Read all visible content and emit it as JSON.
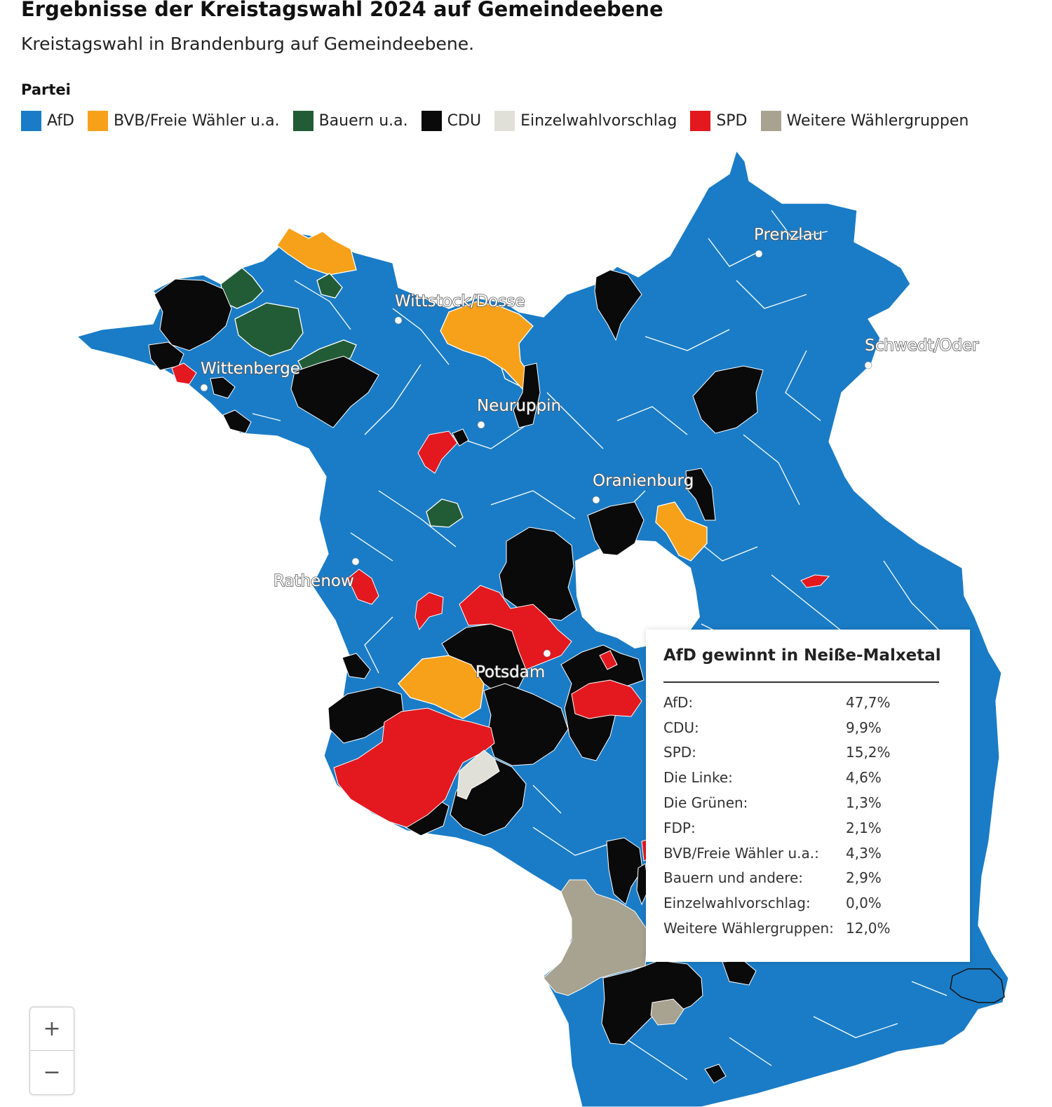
{
  "header": {
    "title": "Ergebnisse der Kreistagswahl 2024 auf Gemeindeebene",
    "subtitle": "Kreistagswahl in Brandenburg auf Gemeindeebene."
  },
  "legend": {
    "title": "Partei",
    "items": [
      {
        "label": "AfD",
        "color": "#1a7cc6"
      },
      {
        "label": "BVB/Freie Wähler u.a.",
        "color": "#f7a11a"
      },
      {
        "label": "Bauern u.a.",
        "color": "#225c36"
      },
      {
        "label": "CDU",
        "color": "#0a0a0a"
      },
      {
        "label": "Einzelwahlvorschlag",
        "color": "#e0e0d8"
      },
      {
        "label": "SPD",
        "color": "#e3191f"
      },
      {
        "label": "Weitere Wählergruppen",
        "color": "#a8a290"
      }
    ]
  },
  "map": {
    "cities": [
      {
        "name": "Prenzlau"
      },
      {
        "name": "Wittstock/Dosse"
      },
      {
        "name": "Schwedt/Oder"
      },
      {
        "name": "Wittenberge"
      },
      {
        "name": "Neuruppin"
      },
      {
        "name": "Oranienburg"
      },
      {
        "name": "Rathenow"
      },
      {
        "name": "Potsdam"
      }
    ]
  },
  "tooltip": {
    "heading": "AfD gewinnt in Neiße-Malxetal",
    "rows": [
      {
        "label": "AfD:",
        "value": "47,7%"
      },
      {
        "label": "CDU:",
        "value": "9,9%"
      },
      {
        "label": "SPD:",
        "value": "15,2%"
      },
      {
        "label": "Die Linke:",
        "value": "4,6%"
      },
      {
        "label": "Die Grünen:",
        "value": "1,3%"
      },
      {
        "label": "FDP:",
        "value": "2,1%"
      },
      {
        "label": "BVB/Freie Wähler u.a.:",
        "value": "4,3%"
      },
      {
        "label": "Bauern und andere:",
        "value": "2,9%"
      },
      {
        "label": "Einzelwahlvorschlag:",
        "value": "0,0%"
      },
      {
        "label": "Weitere Wählergruppen:",
        "value": "12,0%"
      }
    ]
  },
  "zoom": {
    "in_label": "+",
    "out_label": "−"
  }
}
